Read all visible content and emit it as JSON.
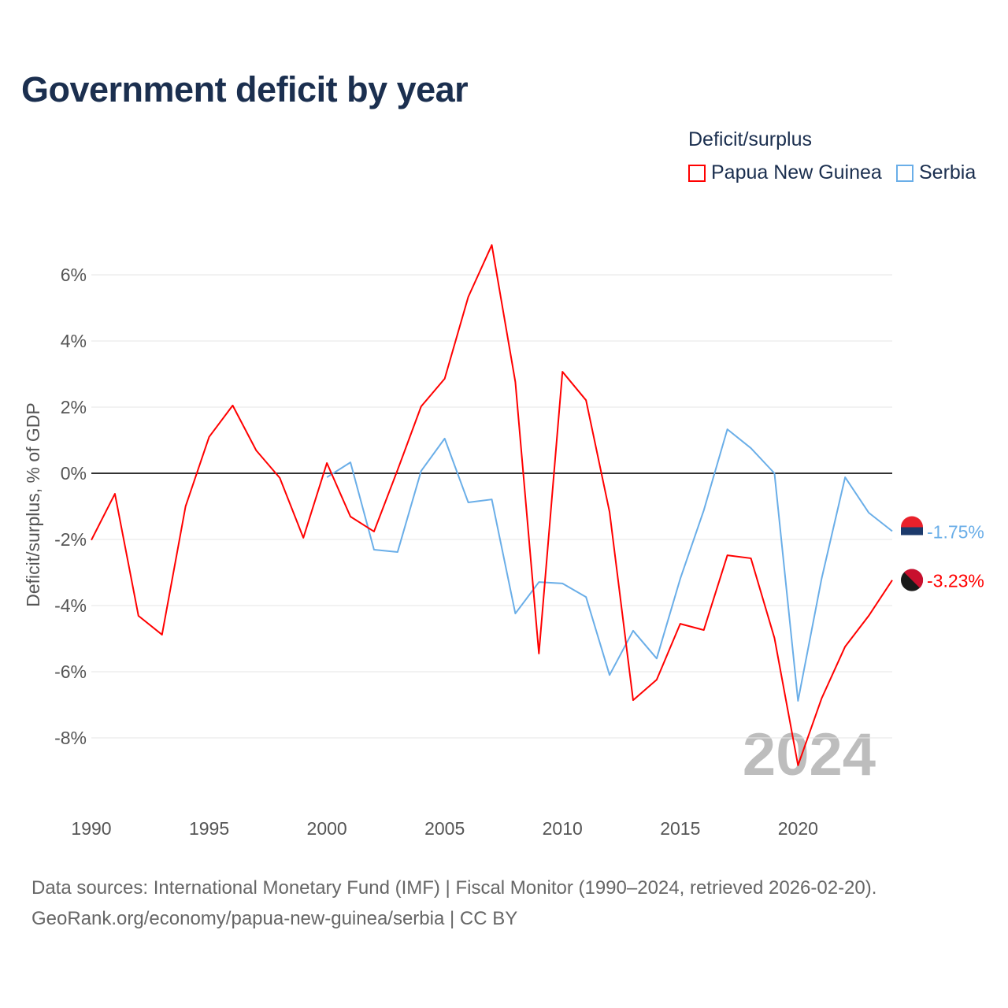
{
  "chart_data": {
    "type": "line",
    "title": "Government deficit by year",
    "xlabel": "",
    "ylabel": "Deficit/surplus, % of GDP",
    "xlim": [
      1990,
      2024
    ],
    "ylim": [
      -10,
      7
    ],
    "x_ticks": [
      "1990",
      "1995",
      "2000",
      "2005",
      "2010",
      "2015",
      "2020"
    ],
    "y_ticks": [
      {
        "v": 6,
        "label": "6%"
      },
      {
        "v": 4,
        "label": "4%"
      },
      {
        "v": 2,
        "label": "2%"
      },
      {
        "v": 0,
        "label": "0%"
      },
      {
        "v": -2,
        "label": "-2%"
      },
      {
        "v": -4,
        "label": "-4%"
      },
      {
        "v": -6,
        "label": "-6%"
      },
      {
        "v": -8,
        "label": "-8%"
      }
    ],
    "legend_title": "Deficit/surplus",
    "legend_position": "top-right",
    "year_watermark": "2024",
    "series": [
      {
        "name": "Papua New Guinea",
        "color": "#ff0000",
        "end_label": "-3.23%",
        "x": [
          1990,
          1991,
          1992,
          1993,
          1994,
          1995,
          1996,
          1997,
          1998,
          1999,
          2000,
          2001,
          2002,
          2003,
          2004,
          2005,
          2006,
          2007,
          2008,
          2009,
          2010,
          2011,
          2012,
          2013,
          2014,
          2015,
          2016,
          2017,
          2018,
          2019,
          2020,
          2021,
          2022,
          2023,
          2024
        ],
        "values": [
          -2.02,
          -0.62,
          -4.31,
          -4.88,
          -1.0,
          1.1,
          2.05,
          0.69,
          -0.14,
          -1.95,
          0.31,
          -1.31,
          -1.76,
          0.1,
          2.02,
          2.86,
          5.33,
          6.9,
          2.76,
          -5.45,
          3.07,
          2.21,
          -1.17,
          -6.86,
          -6.24,
          -4.55,
          -4.74,
          -2.48,
          -2.57,
          -4.98,
          -8.83,
          -6.81,
          -5.24,
          -4.31,
          -3.23
        ]
      },
      {
        "name": "Serbia",
        "color": "#6aaee8",
        "end_label": "-1.75%",
        "x": [
          2000,
          2001,
          2002,
          2003,
          2004,
          2005,
          2006,
          2007,
          2008,
          2009,
          2010,
          2011,
          2012,
          2013,
          2014,
          2015,
          2016,
          2017,
          2018,
          2019,
          2020,
          2021,
          2022,
          2023,
          2024
        ],
        "values": [
          -0.12,
          0.33,
          -2.31,
          -2.38,
          0.07,
          1.05,
          -0.88,
          -0.79,
          -4.24,
          -3.29,
          -3.33,
          -3.74,
          -6.1,
          -4.76,
          -5.6,
          -3.19,
          -1.12,
          1.33,
          0.76,
          0.0,
          -6.88,
          -3.19,
          -0.12,
          -1.19,
          -1.75
        ]
      }
    ]
  },
  "source": {
    "line1": "Data sources: International Monetary Fund (IMF) | Fiscal Monitor (1990–2024, retrieved 2026-02-20).",
    "line2": "GeoRank.org/economy/papua-new-guinea/serbia | CC BY"
  }
}
